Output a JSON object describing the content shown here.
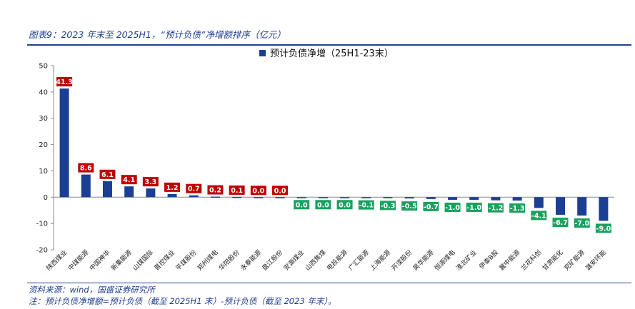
{
  "figure": {
    "title": "图表9：2023 年末至 2025H1，“预计负债”净增额排序（亿元）",
    "source": "资料来源：wind，国盛证券研究所",
    "note": "注：预计负债净增额=预计负债（截至 2025H1 末）-预计负债（截至 2023 年末）。"
  },
  "colors": {
    "bar": "#1b3f93",
    "label_positive": "#c00000",
    "label_negative": "#1aa15f",
    "rule": "#1f3f8f"
  },
  "chart_data": {
    "type": "bar",
    "title": "",
    "xlabel": "",
    "ylabel": "",
    "ylim": [
      -20,
      50
    ],
    "yticks": [
      -20,
      -10,
      0,
      10,
      20,
      30,
      40,
      50
    ],
    "grid": false,
    "legend_position": "top",
    "categories": [
      "陕西煤业",
      "中煤能源",
      "中国神华",
      "新集能源",
      "山煤国际",
      "晋控煤业",
      "平煤股份",
      "郑州煤电",
      "华阳股份",
      "永泰能源",
      "盘江股份",
      "安源煤业",
      "山西焦煤",
      "电投能源",
      "广汇能源",
      "上海能源",
      "开滦股份",
      "昊华能源",
      "恒源煤电",
      "淮北矿业",
      "伊泰B股",
      "冀中能源",
      "兰花科创",
      "甘肃能化",
      "兖矿能源",
      "潞安环能"
    ],
    "series": [
      {
        "name": "预计负债净增（25H1-23末）",
        "values": [
          41.3,
          8.6,
          6.1,
          4.1,
          3.3,
          1.2,
          0.7,
          0.2,
          0.1,
          0.0,
          0.0,
          0.0,
          0.0,
          0.0,
          -0.1,
          -0.3,
          -0.5,
          -0.7,
          -1.0,
          -1.0,
          -1.2,
          -1.3,
          -4.1,
          -6.7,
          -7.0,
          -9.0
        ],
        "labels": [
          "41.3",
          "8.6",
          "6.1",
          "4.1",
          "3.3",
          "1.2",
          "0.7",
          "0.2",
          "0.1",
          "0.0",
          "0.0",
          "0.0",
          "0.0",
          "0.0",
          "-0.1",
          "-0.3",
          "-0.5",
          "-0.7",
          "-1.0",
          "-1.0",
          "-1.2",
          "-1.3",
          "-4.1",
          "-6.7",
          "-7.0",
          "-9.0"
        ],
        "label_signs": [
          "pos",
          "pos",
          "pos",
          "pos",
          "pos",
          "pos",
          "pos",
          "pos",
          "pos",
          "pos",
          "pos",
          "neg",
          "neg",
          "neg",
          "neg",
          "neg",
          "neg",
          "neg",
          "neg",
          "neg",
          "neg",
          "neg",
          "neg",
          "neg",
          "neg",
          "neg"
        ]
      }
    ]
  }
}
